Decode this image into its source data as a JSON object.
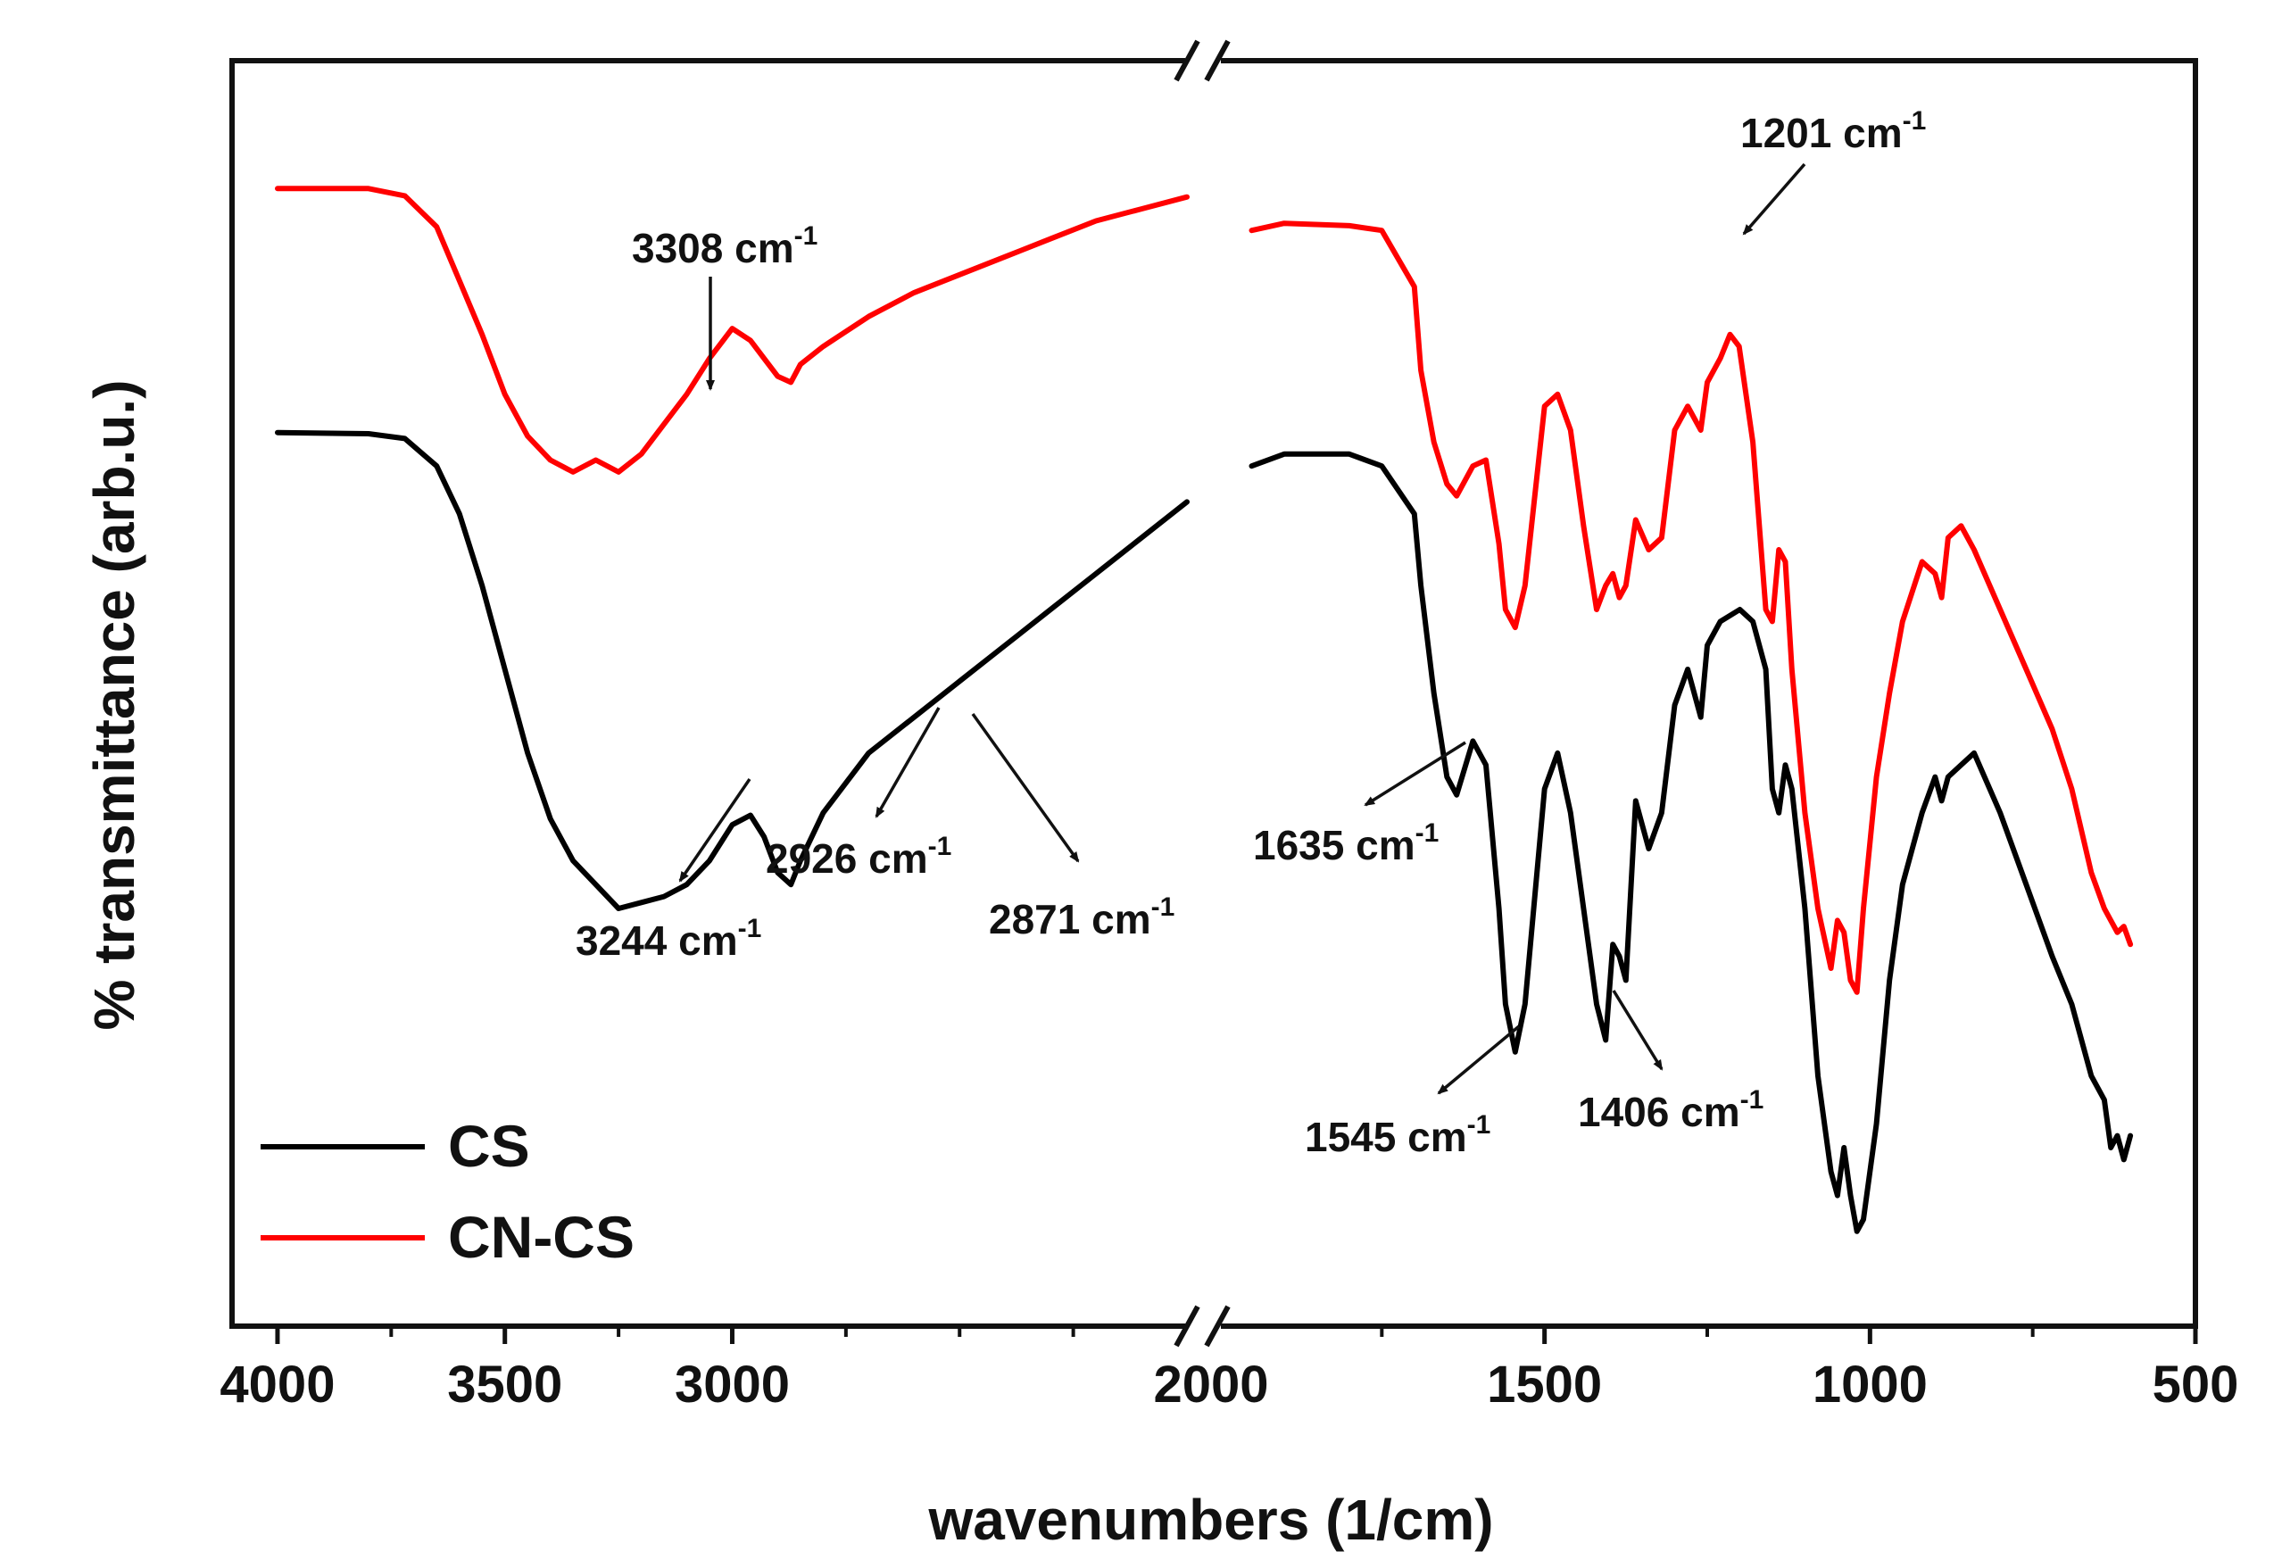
{
  "chart_data": {
    "type": "line",
    "xlabel": "wavenumbers (1/cm)",
    "ylabel": "% transmittance (arb.u.)",
    "x_axis_break": [
      2000,
      2000
    ],
    "xlim_left_panel": [
      4100,
      2000
    ],
    "xlim_right_panel": [
      2000,
      500
    ],
    "ylim": [
      0,
      100
    ],
    "x_ticks": [
      {
        "value": 4000,
        "label": "4000"
      },
      {
        "value": 3500,
        "label": "3500"
      },
      {
        "value": 3000,
        "label": "3000"
      },
      {
        "value": 2000,
        "label": "2000"
      },
      {
        "value": 1500,
        "label": "1500"
      },
      {
        "value": 1000,
        "label": "1000"
      },
      {
        "value": 500,
        "label": "500"
      }
    ],
    "series": [
      {
        "name": "CS",
        "color": "#000000",
        "x": [
          4000,
          3800,
          3720,
          3650,
          3600,
          3550,
          3500,
          3450,
          3400,
          3350,
          3300,
          3250,
          3200,
          3150,
          3100,
          3050,
          3000,
          2960,
          2930,
          2900,
          2871,
          2850,
          2800,
          2700,
          2600,
          2500,
          2400,
          2300,
          2200,
          2100,
          2000,
          1950,
          1900,
          1800,
          1750,
          1700,
          1690,
          1670,
          1650,
          1635,
          1610,
          1590,
          1570,
          1560,
          1545,
          1530,
          1500,
          1480,
          1460,
          1440,
          1420,
          1406,
          1395,
          1385,
          1375,
          1360,
          1340,
          1320,
          1300,
          1280,
          1260,
          1250,
          1230,
          1200,
          1180,
          1160,
          1150,
          1140,
          1130,
          1120,
          1100,
          1080,
          1060,
          1050,
          1040,
          1030,
          1020,
          1010,
          990,
          970,
          950,
          920,
          900,
          890,
          880,
          860,
          840,
          800,
          760,
          720,
          690,
          660,
          640,
          630,
          620,
          610,
          600
        ],
        "y": [
          69.8,
          69.7,
          69.3,
          67,
          63,
          57,
          50,
          43,
          37.5,
          34,
          32,
          30,
          30.5,
          31,
          32,
          34,
          37,
          37.8,
          36,
          33,
          32,
          34,
          38,
          43,
          46,
          49,
          52,
          55,
          58,
          61,
          64,
          67,
          68,
          68,
          67,
          63,
          57,
          48,
          41,
          39.5,
          44,
          42,
          30,
          22,
          18,
          22,
          40,
          43,
          38,
          30,
          22,
          19,
          27,
          26,
          24,
          39,
          35,
          38,
          47,
          50,
          46,
          52,
          54,
          55,
          54,
          50,
          40,
          38,
          42,
          40,
          30,
          16,
          8,
          6,
          10,
          6,
          3,
          4,
          12,
          24,
          32,
          38,
          41,
          39,
          41,
          42,
          43,
          38,
          32,
          26,
          22,
          16,
          14,
          10,
          11,
          9,
          11
        ]
      },
      {
        "name": "CN-CS",
        "color": "#ff0000",
        "x": [
          4000,
          3800,
          3720,
          3650,
          3600,
          3550,
          3500,
          3450,
          3400,
          3350,
          3300,
          3250,
          3200,
          3150,
          3100,
          3050,
          3000,
          2960,
          2930,
          2900,
          2871,
          2850,
          2800,
          2700,
          2600,
          2500,
          2400,
          2300,
          2200,
          2100,
          2000,
          1950,
          1900,
          1800,
          1750,
          1700,
          1690,
          1670,
          1650,
          1635,
          1610,
          1590,
          1570,
          1560,
          1545,
          1530,
          1500,
          1480,
          1460,
          1440,
          1420,
          1406,
          1395,
          1385,
          1375,
          1360,
          1340,
          1320,
          1300,
          1280,
          1260,
          1250,
          1230,
          1215,
          1201,
          1180,
          1160,
          1150,
          1140,
          1130,
          1120,
          1100,
          1080,
          1060,
          1050,
          1040,
          1030,
          1020,
          1010,
          990,
          970,
          950,
          920,
          900,
          890,
          880,
          860,
          840,
          800,
          760,
          720,
          690,
          660,
          640,
          630,
          620,
          610,
          600
        ],
        "y": [
          90.2,
          90.2,
          89.6,
          87,
          82.5,
          78,
          73,
          69.5,
          67.5,
          66.5,
          67.5,
          66.5,
          68,
          70.5,
          73,
          76,
          78.5,
          77.5,
          76,
          74.5,
          74,
          75.5,
          77,
          79.5,
          81.5,
          83,
          84.5,
          86,
          87.5,
          88.5,
          89.5,
          86.7,
          87.3,
          87.1,
          86.7,
          82,
          75,
          69,
          65.5,
          64.5,
          67,
          67.5,
          60.5,
          55,
          53.5,
          57,
          72,
          73,
          70,
          62,
          55,
          57,
          58,
          56,
          57,
          62.5,
          60,
          61,
          70,
          72,
          70,
          74,
          76,
          78,
          77,
          69,
          55,
          54,
          60,
          59,
          50,
          38,
          30,
          25,
          29,
          28,
          24,
          23,
          30,
          41,
          48,
          54,
          59,
          58,
          56,
          61,
          62,
          60,
          55,
          50,
          45,
          40,
          33,
          30,
          29,
          28,
          28.5,
          27
        ]
      }
    ],
    "legend": {
      "placement": "bottom-left",
      "entries": [
        "CS",
        "CN-CS"
      ]
    },
    "annotations": [
      {
        "label": "3308 cm",
        "sup": "-1",
        "series": "CN-CS",
        "x": 3308
      },
      {
        "label": "3244 cm",
        "sup": "-1",
        "series": "CS",
        "x": 3244
      },
      {
        "label": "2926 cm",
        "sup": "-1",
        "series": "CS",
        "x": 2926
      },
      {
        "label": "2871 cm",
        "sup": "-1",
        "series": "CS",
        "x": 2871
      },
      {
        "label": "1201 cm",
        "sup": "-1",
        "series": "CN-CS",
        "x": 1201
      },
      {
        "label": "1635 cm",
        "sup": "-1",
        "series": "CS",
        "x": 1635
      },
      {
        "label": "1545 cm",
        "sup": "-1",
        "series": "CS",
        "x": 1545
      },
      {
        "label": "1406 cm",
        "sup": "-1",
        "series": "CS",
        "x": 1406
      }
    ]
  }
}
